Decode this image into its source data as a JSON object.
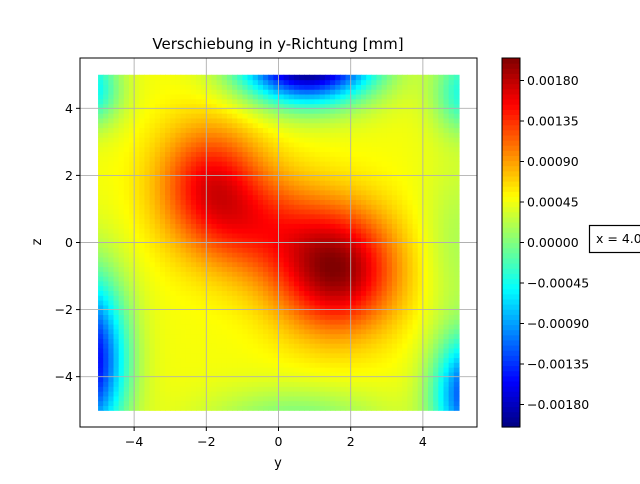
{
  "chart_data": {
    "type": "heatmap",
    "title": "Verschiebung in y-Richtung [mm]",
    "xlabel": "y",
    "ylabel": "z",
    "xlim": [
      -5.5,
      5.5
    ],
    "ylim": [
      -5.5,
      5.5
    ],
    "data_extent": {
      "x": [
        -5,
        5
      ],
      "y": [
        -5,
        5
      ]
    },
    "xticks": [
      -4,
      -2,
      0,
      2,
      4
    ],
    "yticks": [
      -4,
      -2,
      0,
      2,
      4
    ],
    "grid": true,
    "colormap": "jet",
    "colorbar": {
      "range": [
        -0.00205,
        0.00205
      ],
      "ticks": [
        -0.0018,
        -0.00135,
        -0.0009,
        -0.00045,
        0.0,
        0.00045,
        0.0009,
        0.00135,
        0.0018
      ],
      "tick_labels": [
        "−0.00180",
        "−0.00135",
        "−0.00090",
        "−0.00045",
        "0.00000",
        "0.00045",
        "0.00090",
        "0.00135",
        "0.00180"
      ]
    },
    "annotation": "x = 4.0",
    "field_features": [
      {
        "kind": "max",
        "y": 1.6,
        "z": -0.8,
        "value": 0.002
      },
      {
        "kind": "high",
        "y": -1.8,
        "z": 1.8,
        "value": 0.0016
      },
      {
        "kind": "min",
        "y": 0.8,
        "z": 5.0,
        "value": -0.0018
      },
      {
        "kind": "low",
        "y": -5.0,
        "z": -4.5,
        "value": -0.0012
      },
      {
        "kind": "low",
        "y": 5.0,
        "z": -5.0,
        "value": -0.0011
      },
      {
        "kind": "low",
        "y": -5.0,
        "z": 5.0,
        "value": -0.0004
      },
      {
        "kind": "low",
        "y": 5.0,
        "z": 5.0,
        "value": -0.0003
      }
    ]
  },
  "colors": {
    "grid": "#b0b0b0",
    "frame": "#000000",
    "annotation_border": "#000000"
  }
}
